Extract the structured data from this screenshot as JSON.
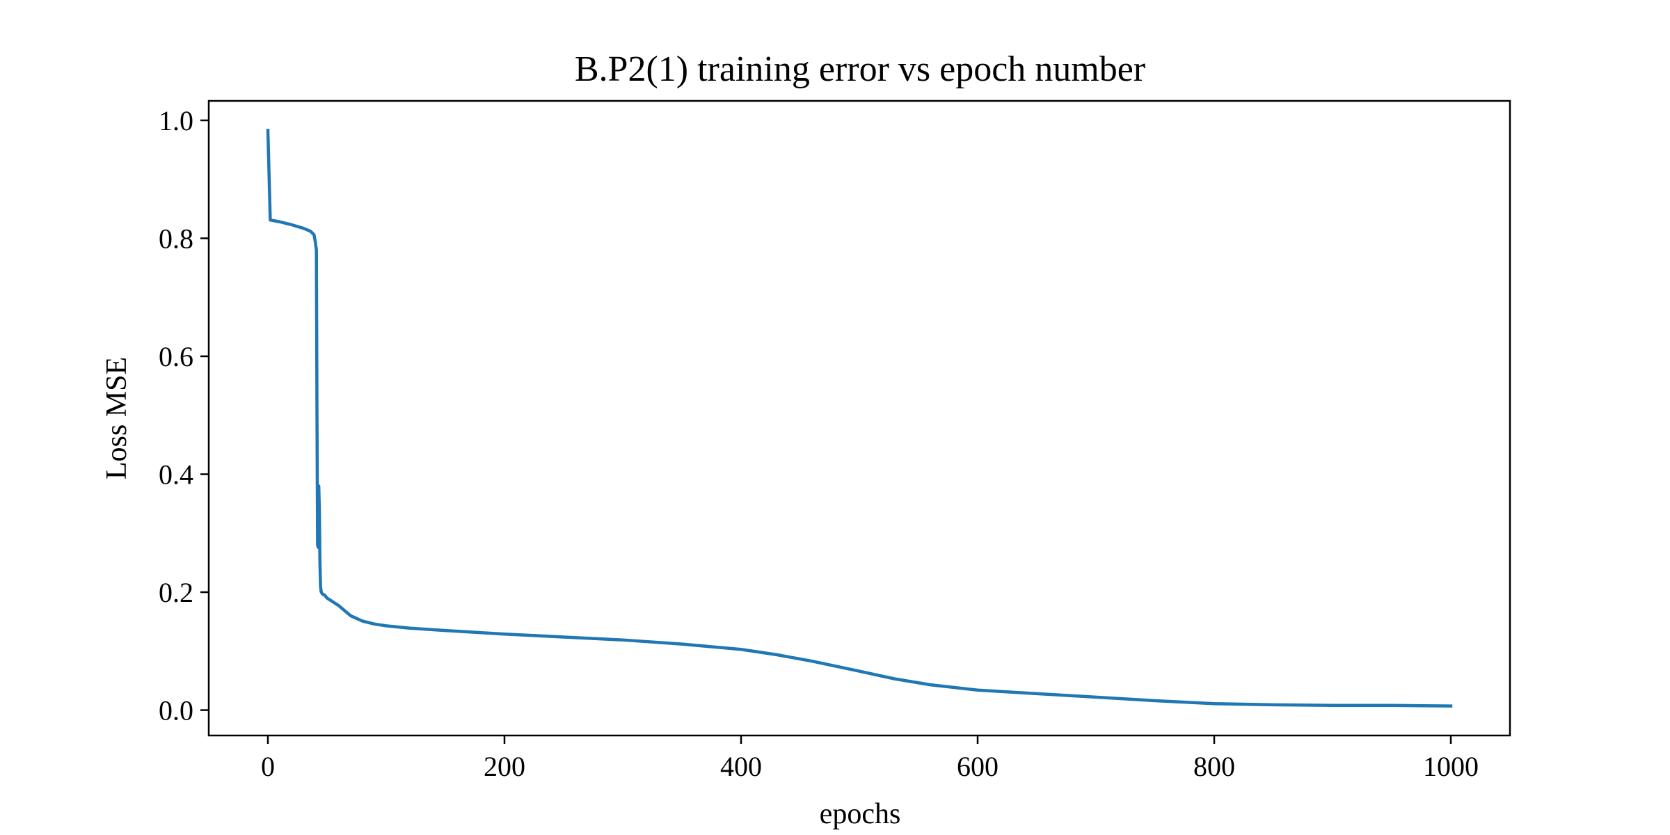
{
  "chart_data": {
    "type": "line",
    "title": "B.P2(1) training error vs epoch number",
    "xlabel": "epochs",
    "ylabel": "Loss MSE",
    "xlim": [
      -50,
      1050
    ],
    "ylim": [
      -0.043,
      1.033
    ],
    "xticks": [
      0,
      200,
      400,
      600,
      800,
      1000
    ],
    "xtick_labels": [
      "0",
      "200",
      "400",
      "600",
      "800",
      "1000"
    ],
    "yticks": [
      0.0,
      0.2,
      0.4,
      0.6,
      0.8,
      1.0
    ],
    "ytick_labels": [
      "0.0",
      "0.2",
      "0.4",
      "0.6",
      "0.8",
      "1.0"
    ],
    "grid": false,
    "series": [
      {
        "color": "#1f77b4",
        "x": [
          0,
          2,
          10,
          20,
          30,
          36,
          39,
          40,
          41,
          41.5,
          42,
          42.5,
          43,
          43.5,
          44,
          44.5,
          45,
          46,
          48,
          50,
          60,
          70,
          80,
          90,
          100,
          120,
          150,
          200,
          250,
          300,
          350,
          400,
          430,
          460,
          500,
          530,
          560,
          600,
          650,
          700,
          750,
          800,
          850,
          900,
          950,
          1000
        ],
        "y": [
          0.983,
          0.831,
          0.828,
          0.823,
          0.817,
          0.812,
          0.806,
          0.795,
          0.78,
          0.5,
          0.28,
          0.276,
          0.38,
          0.34,
          0.25,
          0.21,
          0.201,
          0.197,
          0.195,
          0.19,
          0.177,
          0.16,
          0.151,
          0.146,
          0.143,
          0.139,
          0.135,
          0.129,
          0.124,
          0.119,
          0.112,
          0.103,
          0.094,
          0.083,
          0.066,
          0.053,
          0.043,
          0.034,
          0.028,
          0.022,
          0.016,
          0.011,
          0.009,
          0.008,
          0.008,
          0.007
        ]
      }
    ]
  }
}
